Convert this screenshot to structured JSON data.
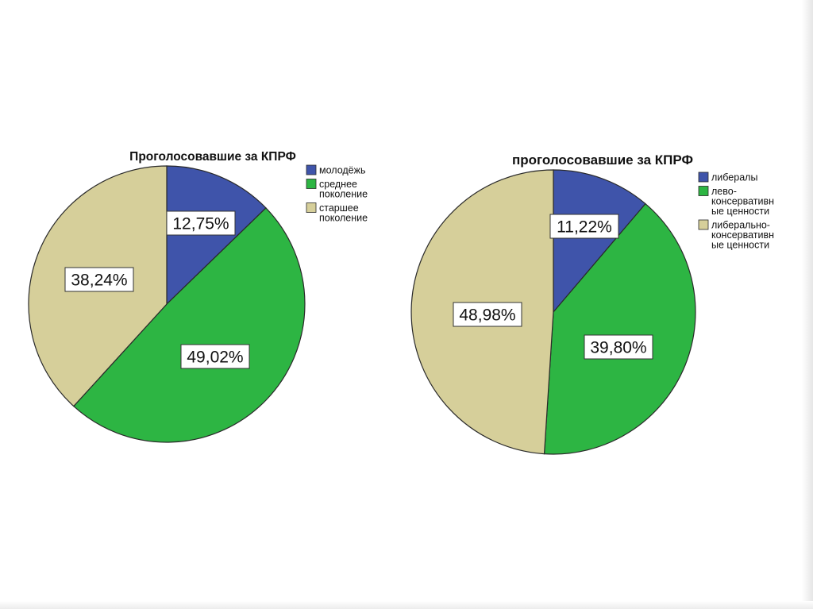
{
  "colors": {
    "blue": "#3f54aa",
    "green": "#2db543",
    "beige": "#d6cf9a",
    "edge": "#2a2a2a"
  },
  "chart_data": [
    {
      "type": "pie",
      "title": "Проголосовавшие за КПРФ",
      "legend_position": "top-right",
      "slices": [
        {
          "legend": [
            "молодёжь"
          ],
          "value": 12.75,
          "label": "12,75%",
          "color": "#3f54aa"
        },
        {
          "legend": [
            "среднее",
            "поколение"
          ],
          "value": 49.02,
          "label": "49,02%",
          "color": "#2db543"
        },
        {
          "legend": [
            "старшее",
            "поколение"
          ],
          "value": 38.24,
          "label": "38,24%",
          "color": "#d6cf9a"
        }
      ]
    },
    {
      "type": "pie",
      "title": "проголосовавшие за КПРФ",
      "legend_position": "top-right",
      "slices": [
        {
          "legend": [
            "либералы"
          ],
          "value": 11.22,
          "label": "11,22%",
          "color": "#3f54aa"
        },
        {
          "legend": [
            "лево-",
            "консервативн",
            "ые ценности"
          ],
          "value": 39.8,
          "label": "39,80%",
          "color": "#2db543"
        },
        {
          "legend": [
            "либерально-",
            "консервативн",
            "ые ценности"
          ],
          "value": 48.98,
          "label": "48,98%",
          "color": "#d6cf9a"
        }
      ]
    }
  ]
}
